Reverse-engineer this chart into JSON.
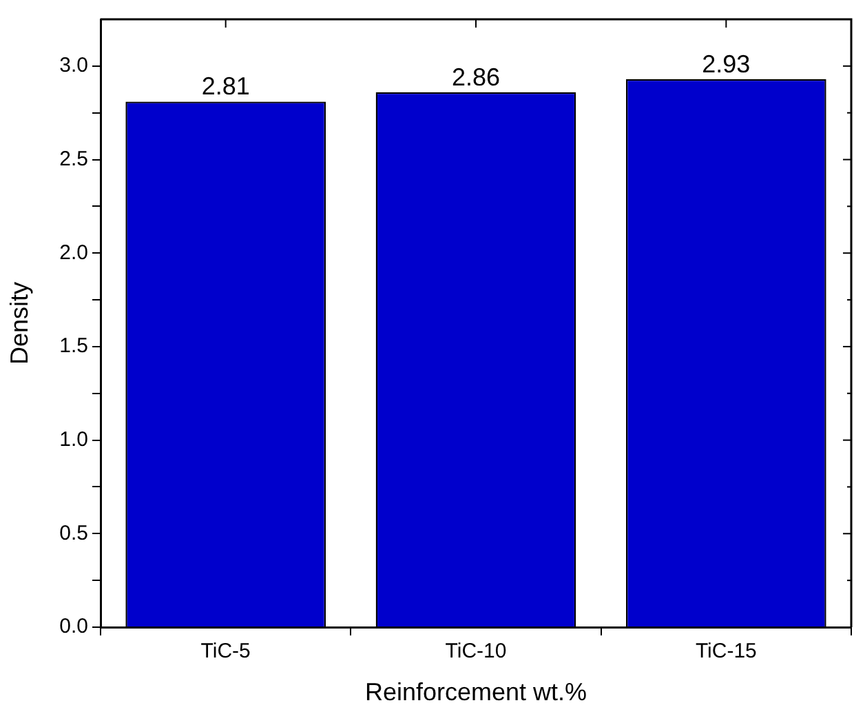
{
  "chart_data": {
    "type": "bar",
    "xlabel": "Reinforcement wt.%",
    "ylabel": "Density",
    "categories": [
      "TiC-5",
      "TiC-10",
      "TiC-15"
    ],
    "values": [
      2.81,
      2.86,
      2.93
    ],
    "color": "#0000cc",
    "data_labels": true,
    "ylim": [
      0,
      3.25
    ],
    "yticks": [
      {
        "value": 0,
        "label": "0.0"
      },
      {
        "value": 0.25,
        "label": null
      },
      {
        "value": 0.5,
        "label": "0.5"
      },
      {
        "value": 0.75,
        "label": null
      },
      {
        "value": 1,
        "label": "1.0"
      },
      {
        "value": 1.25,
        "label": null
      },
      {
        "value": 1.5,
        "label": "1.5"
      },
      {
        "value": 1.75,
        "label": null
      },
      {
        "value": 2,
        "label": "2.0"
      },
      {
        "value": 2.25,
        "label": null
      },
      {
        "value": 2.5,
        "label": "2.5"
      },
      {
        "value": 2.75,
        "label": null
      },
      {
        "value": 3,
        "label": "3.0"
      }
    ],
    "grid": false,
    "legend": false
  }
}
